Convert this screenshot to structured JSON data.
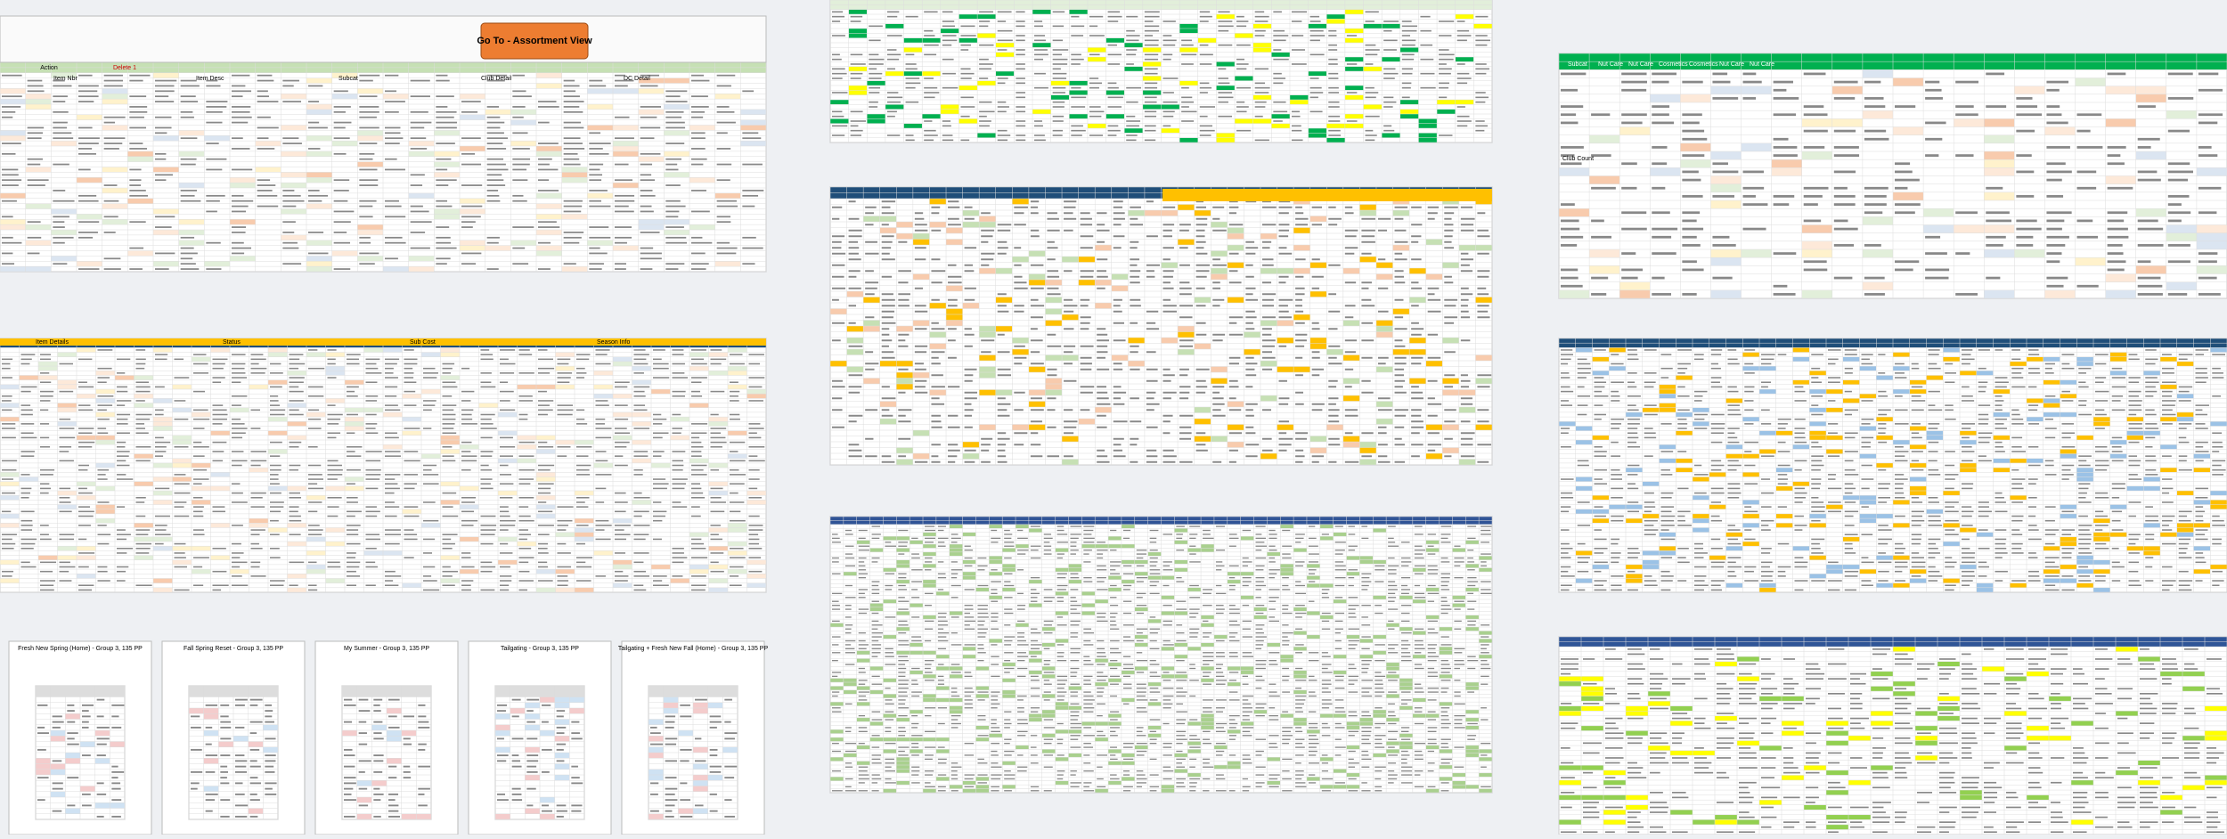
{
  "sheet1": {
    "button": "Go To - Assortment View",
    "action": "Action",
    "delete": "Delete 1",
    "headers": [
      "Item Nbr",
      "Item Desc",
      "Subcat",
      "Club Detail",
      "DC Detail"
    ]
  },
  "sheet2": {
    "headers": [
      "Item Details",
      "Status",
      "Sub Cost",
      "Season Info"
    ]
  },
  "charts": {
    "titles": [
      "Fresh New Spring (Home) - Group 3, 135 PP",
      "Fall Spring Reset - Group 3, 135 PP",
      "My Summer - Group 3, 135 PP",
      "Tailgating - Group 3, 135 PP",
      "Tailgating + Fresh New Fall (Home) - Group 3, 135 PP"
    ]
  },
  "sheet7": {
    "headers": [
      "Subcat",
      "Nut Care",
      "Nut Care",
      "Cosmetics",
      "Cosmetics",
      "Nut Care",
      "Nut Care"
    ],
    "row": "Club Count"
  }
}
